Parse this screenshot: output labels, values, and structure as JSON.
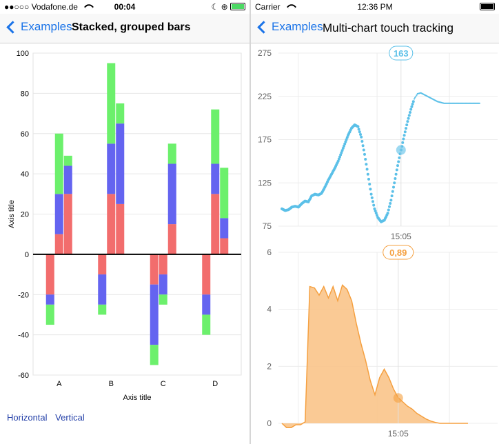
{
  "left": {
    "status": {
      "carrier": "●●○○○ Vodafone.de",
      "time": "00:04"
    },
    "nav": {
      "back": "Examples",
      "title": "Stacked, grouped bars"
    },
    "links": {
      "horizontal": "Horizontal",
      "vertical": "Vertical"
    }
  },
  "right": {
    "status": {
      "carrier": "Carrier",
      "time": "12:36 PM"
    },
    "nav": {
      "back": "Examples",
      "title": "Multi-chart touch tracking"
    }
  },
  "colors": {
    "red": "#f26d6d",
    "blue": "#6464f0",
    "green": "#6cf06c",
    "teal": "#5bc0e8",
    "orange": "#f5a040",
    "orange_fill": "#f9c48a"
  },
  "chart_data": [
    {
      "type": "bar",
      "title": "",
      "xlabel": "Axis title",
      "ylabel": "Axis title",
      "ylim": [
        -60,
        100
      ],
      "yticks": [
        100,
        80,
        60,
        40,
        20,
        0,
        -20,
        -40,
        -60
      ],
      "categories": [
        "A",
        "B",
        "C",
        "D"
      ],
      "stacked_grouped": true,
      "stack_colors": [
        "red",
        "blue",
        "green"
      ],
      "bars": [
        {
          "category": "A",
          "group": 0,
          "segments": [
            -20,
            -5,
            -10
          ]
        },
        {
          "category": "A",
          "group": 1,
          "segments": [
            10,
            20,
            30
          ]
        },
        {
          "category": "A",
          "group": 2,
          "segments": [
            30,
            14,
            5
          ]
        },
        {
          "category": "B",
          "group": 0,
          "segments": [
            -10,
            -15,
            -5
          ]
        },
        {
          "category": "B",
          "group": 1,
          "segments": [
            30,
            25,
            40
          ]
        },
        {
          "category": "B",
          "group": 2,
          "segments": [
            25,
            40,
            10
          ]
        },
        {
          "category": "C",
          "group": 0,
          "segments": [
            -15,
            -30,
            -10
          ]
        },
        {
          "category": "C",
          "group": 1,
          "segments": [
            -10,
            -10,
            -5
          ]
        },
        {
          "category": "C",
          "group": 2,
          "segments": [
            15,
            30,
            10
          ]
        },
        {
          "category": "D",
          "group": 0,
          "segments": [
            -20,
            -10,
            -10
          ]
        },
        {
          "category": "D",
          "group": 1,
          "segments": [
            30,
            15,
            27
          ]
        },
        {
          "category": "D",
          "group": 2,
          "segments": [
            8,
            10,
            25
          ]
        }
      ]
    },
    {
      "type": "scatter",
      "ylim": [
        75,
        275
      ],
      "yticks": [
        275,
        225,
        175,
        125,
        75
      ],
      "xtick_label": "15:05",
      "touch_value": "163",
      "touch_y": 163,
      "series": [
        {
          "x": [
            0,
            1,
            2,
            3,
            4,
            5,
            6,
            7,
            8,
            9,
            10,
            11,
            12,
            13,
            14,
            15,
            16,
            17,
            18,
            19,
            20,
            21,
            22,
            23,
            24,
            25,
            26,
            27,
            28,
            29,
            30,
            31,
            32,
            33,
            34,
            35,
            36,
            37,
            38,
            39,
            40,
            41,
            42,
            43,
            44,
            45,
            46,
            47,
            48,
            49,
            50,
            51,
            52,
            53,
            54,
            55,
            56,
            57,
            58,
            59,
            60
          ],
          "y": [
            95,
            93,
            94,
            97,
            98,
            97,
            101,
            104,
            103,
            110,
            112,
            111,
            113,
            120,
            128,
            135,
            142,
            150,
            160,
            170,
            180,
            188,
            192,
            190,
            178,
            158,
            135,
            112,
            95,
            85,
            80,
            82,
            90,
            105,
            125,
            145,
            163,
            180,
            196,
            210,
            222,
            228,
            229,
            227,
            225,
            223,
            221,
            219,
            218,
            217,
            217,
            217,
            217,
            217,
            217,
            217,
            217,
            217,
            217,
            217,
            217
          ],
          "style": "dots"
        }
      ]
    },
    {
      "type": "area",
      "ylim": [
        0,
        6
      ],
      "yticks": [
        6,
        4,
        2,
        0
      ],
      "xtick_label": "15:05",
      "touch_value": "0,89",
      "touch_y": 0.89,
      "series": [
        {
          "x": [
            0,
            1,
            2,
            3,
            4,
            5,
            6,
            7,
            8,
            9,
            10,
            11,
            12,
            13,
            14,
            15,
            16,
            17,
            18,
            19,
            20,
            21,
            22,
            23,
            24,
            25,
            26,
            27,
            28,
            29,
            30,
            31,
            32,
            33,
            34,
            35,
            36,
            37,
            38,
            39,
            40
          ],
          "y": [
            0,
            -0.15,
            -0.15,
            -0.05,
            -0.05,
            0.05,
            4.8,
            4.75,
            4.5,
            4.8,
            4.4,
            4.8,
            4.3,
            4.85,
            4.7,
            4.3,
            3.5,
            2.8,
            2.2,
            1.5,
            1.0,
            1.6,
            1.9,
            1.6,
            1.2,
            0.9,
            0.75,
            0.6,
            0.5,
            0.35,
            0.25,
            0.15,
            0.08,
            0.03,
            0.0,
            0.0,
            0.0,
            0.0,
            0.0,
            0.0,
            0.0
          ]
        }
      ]
    }
  ]
}
